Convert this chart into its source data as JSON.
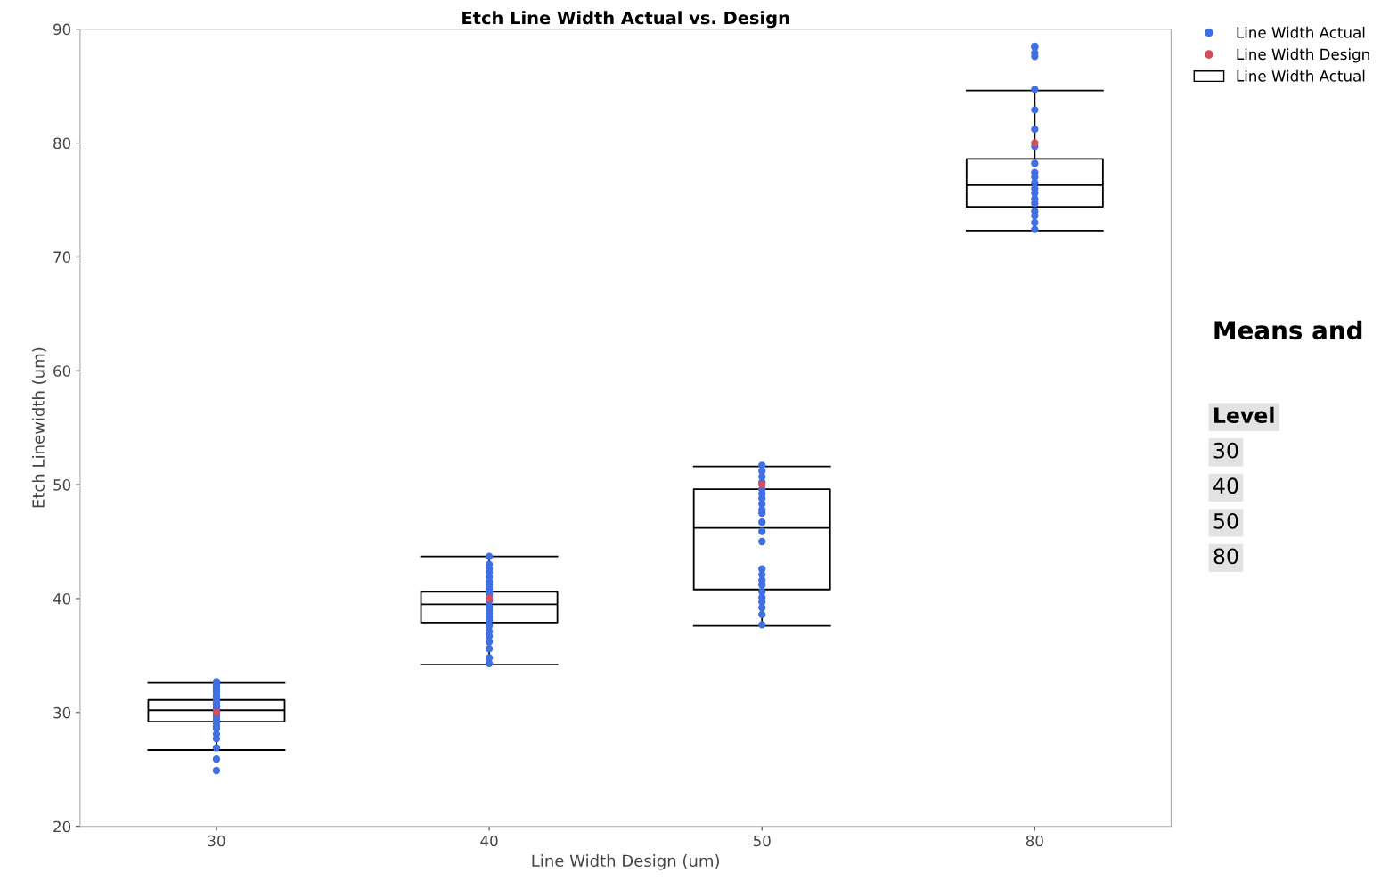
{
  "chart_data": {
    "type": "box",
    "title": "Etch Line Width Actual vs. Design",
    "xlabel": "Line Width Design (um)",
    "ylabel": "Etch Linewidth (um)",
    "categories": [
      "30",
      "40",
      "50",
      "80"
    ],
    "ylim": [
      20,
      90
    ],
    "yticks": [
      20,
      30,
      40,
      50,
      60,
      70,
      80,
      90
    ],
    "grid": false,
    "legend": "top right",
    "series": [
      {
        "name": "Line Width Actual",
        "type": "scatter",
        "color": "#3f6fe0",
        "marker": "circle",
        "x": [
          "30",
          "30",
          "30",
          "30",
          "30",
          "30",
          "30",
          "30",
          "30",
          "30",
          "30",
          "30",
          "30",
          "30",
          "30",
          "30",
          "30",
          "30",
          "30",
          "30",
          "30",
          "30",
          "30",
          "30",
          "30",
          "30",
          "40",
          "40",
          "40",
          "40",
          "40",
          "40",
          "40",
          "40",
          "40",
          "40",
          "40",
          "40",
          "40",
          "40",
          "40",
          "40",
          "40",
          "40",
          "40",
          "40",
          "40",
          "40",
          "40",
          "50",
          "50",
          "50",
          "50",
          "50",
          "50",
          "50",
          "50",
          "50",
          "50",
          "50",
          "50",
          "50",
          "50",
          "50",
          "50",
          "50",
          "50",
          "50",
          "50",
          "50",
          "50",
          "50",
          "80",
          "80",
          "80",
          "80",
          "80",
          "80",
          "80",
          "80",
          "80",
          "80",
          "80",
          "80",
          "80",
          "80",
          "80",
          "80",
          "80",
          "80",
          "80",
          "80"
        ],
        "values": [
          32.7,
          32.5,
          32.3,
          32.1,
          32.0,
          31.8,
          31.5,
          31.4,
          31.2,
          31.0,
          30.8,
          30.7,
          30.5,
          30.3,
          30.1,
          29.9,
          29.7,
          29.4,
          29.1,
          28.8,
          28.6,
          28.1,
          27.7,
          26.9,
          25.9,
          24.9,
          43.7,
          43.0,
          42.6,
          42.3,
          41.9,
          41.5,
          41.2,
          40.9,
          40.6,
          40.3,
          39.8,
          39.3,
          39.0,
          38.7,
          38.4,
          38.1,
          37.6,
          37.1,
          36.7,
          36.2,
          35.6,
          34.8,
          34.3,
          51.7,
          51.2,
          50.7,
          50.2,
          49.6,
          49.2,
          48.8,
          48.3,
          47.8,
          47.5,
          46.7,
          45.9,
          45.0,
          42.6,
          42.1,
          41.6,
          41.2,
          40.6,
          40.1,
          39.7,
          39.2,
          38.6,
          37.7,
          88.5,
          88.4,
          87.9,
          87.6,
          84.7,
          82.9,
          81.2,
          79.7,
          78.2,
          77.4,
          77.0,
          76.5,
          76.0,
          75.6,
          75.1,
          74.7,
          74.0,
          73.6,
          73.0,
          72.4
        ]
      },
      {
        "name": "Line Width Design",
        "type": "scatter",
        "color": "#d44d5c",
        "marker": "circle",
        "x": [
          "30",
          "40",
          "50",
          "80"
        ],
        "values": [
          30,
          40,
          50,
          80
        ]
      },
      {
        "name": "Line Width Actual",
        "color": "#000000",
        "boxes": [
          {
            "low": 26.7,
            "q1": 29.2,
            "median": 30.2,
            "q3": 31.1,
            "high": 32.6
          },
          {
            "low": 34.2,
            "q1": 37.9,
            "median": 39.5,
            "q3": 40.6,
            "high": 43.7
          },
          {
            "low": 37.6,
            "q1": 40.8,
            "median": 46.2,
            "q3": 49.6,
            "high": 51.6
          },
          {
            "low": 72.3,
            "q1": 74.4,
            "median": 76.3,
            "q3": 78.6,
            "high": 84.6
          }
        ]
      }
    ],
    "annotations": [
      "Means and",
      "Level",
      "30",
      "40",
      "50",
      "80"
    ]
  }
}
